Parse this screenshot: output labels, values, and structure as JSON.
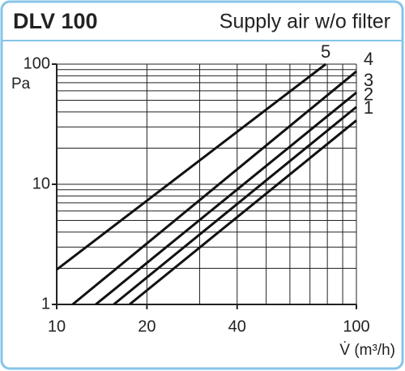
{
  "chart_data": {
    "type": "line",
    "title": "DLV 100",
    "subtitle": "Supply air w/o filter",
    "x_label": "V̇ (m³/h)",
    "y_label": "Pa",
    "log_x": true,
    "log_y": true,
    "grid": true,
    "xlim": [
      10,
      100
    ],
    "ylim": [
      1,
      100
    ],
    "xticks": [
      10,
      20,
      40,
      100
    ],
    "yticks": [
      1,
      10,
      100
    ],
    "xgrid": [
      10,
      20,
      30,
      40,
      50,
      60,
      70,
      80,
      90,
      100
    ],
    "ygrid": [
      1,
      2,
      3,
      4,
      5,
      6,
      7,
      8,
      9,
      10,
      20,
      30,
      40,
      50,
      60,
      70,
      80,
      90,
      100
    ],
    "series": [
      {
        "name": "1",
        "color": "#111111",
        "x": [
          17.5,
          100
        ],
        "values": [
          1,
          34
        ]
      },
      {
        "name": "2",
        "color": "#111111",
        "x": [
          15.5,
          100
        ],
        "values": [
          1,
          44
        ]
      },
      {
        "name": "3",
        "color": "#111111",
        "x": [
          13.5,
          100
        ],
        "values": [
          1,
          58
        ]
      },
      {
        "name": "4",
        "color": "#111111",
        "x": [
          11.3,
          100
        ],
        "values": [
          1,
          87
        ]
      },
      {
        "name": "5",
        "color": "#111111",
        "x": [
          10,
          79
        ],
        "values": [
          1.95,
          100
        ]
      }
    ]
  }
}
